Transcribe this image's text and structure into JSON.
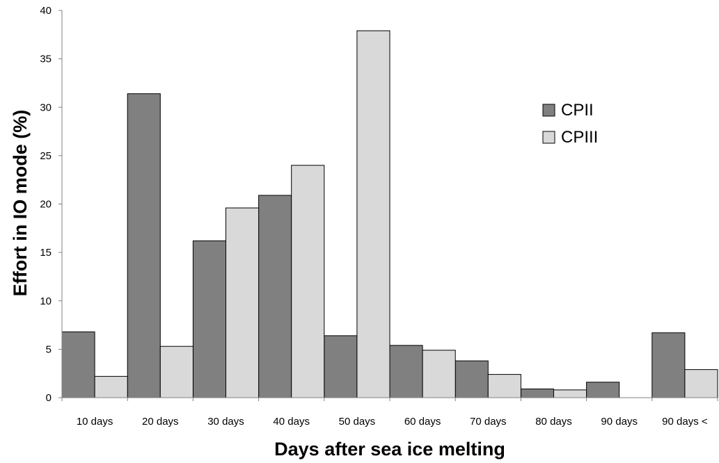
{
  "chart_data": {
    "type": "bar",
    "title": "",
    "xlabel": "Days after sea ice melting",
    "ylabel": "Effort in IO mode (%)",
    "ylim": [
      0,
      40
    ],
    "yticks": [
      "0",
      "5",
      "10",
      "15",
      "20",
      "25",
      "30",
      "35",
      "40"
    ],
    "categories": [
      "10 days",
      "20 days",
      "30 days",
      "40 days",
      "50 days",
      "60 days",
      "70 days",
      "80 days",
      "90 days",
      "90 days <"
    ],
    "series": [
      {
        "name": "CPII",
        "color": "#808080",
        "values": [
          6.8,
          31.4,
          16.2,
          20.9,
          6.4,
          5.4,
          3.8,
          0.9,
          1.6,
          6.7
        ]
      },
      {
        "name": "CPIII",
        "color": "#d9d9d9",
        "values": [
          2.2,
          5.3,
          19.6,
          24.0,
          37.9,
          4.9,
          2.4,
          0.8,
          0.0,
          2.9
        ]
      }
    ],
    "grid": false,
    "legend": "right"
  }
}
